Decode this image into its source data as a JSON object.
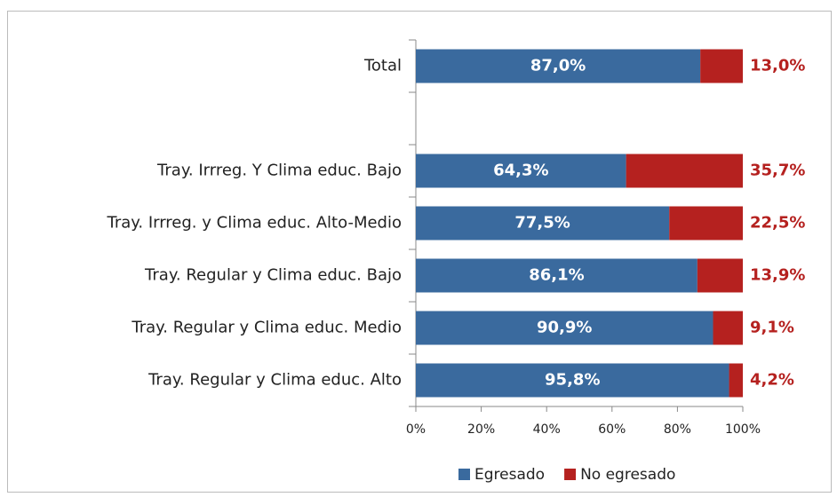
{
  "chart_data": {
    "type": "stacked-barh",
    "categories": [
      "Total",
      null,
      "Tray. Irrreg. Y  Clima educ. Bajo",
      "Tray. Irrreg. y Clima educ. Alto-Medio",
      "Tray. Regular y Clima educ. Bajo",
      "Tray. Regular y Clima educ. Medio",
      "Tray. Regular y Clima educ. Alto"
    ],
    "series": [
      {
        "name": "Egresado",
        "color": "#3a6a9e",
        "values": [
          87.0,
          null,
          64.3,
          77.5,
          86.1,
          90.9,
          95.8
        ],
        "value_labels": [
          "87,0%",
          null,
          "64,3%",
          "77,5%",
          "86,1%",
          "90,9%",
          "95,8%"
        ]
      },
      {
        "name": "No egresado",
        "color": "#b5211f",
        "values": [
          13.0,
          null,
          35.7,
          22.5,
          13.9,
          9.1,
          4.2
        ],
        "value_labels": [
          "13,0%",
          null,
          "35,7%",
          "22,5%",
          "13,9%",
          "9,1%",
          "4,2%"
        ]
      }
    ],
    "xlim": [
      0,
      100
    ],
    "xticks": [
      {
        "value": 0,
        "label": "0%"
      },
      {
        "value": 20,
        "label": "20%"
      },
      {
        "value": 40,
        "label": "40%"
      },
      {
        "value": 60,
        "label": "60%"
      },
      {
        "value": 80,
        "label": "80%"
      },
      {
        "value": 100,
        "label": "100%"
      }
    ],
    "legend": "bottom"
  }
}
